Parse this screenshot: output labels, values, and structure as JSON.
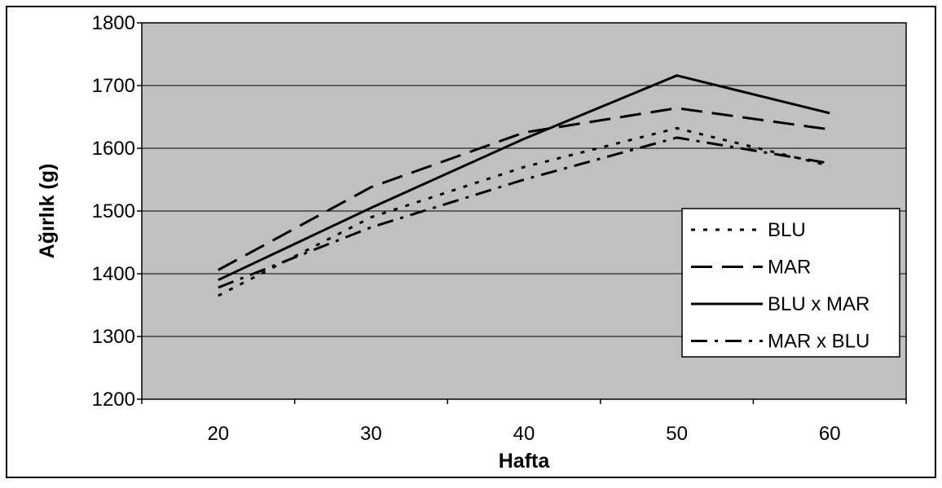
{
  "chart_data": {
    "type": "line",
    "title": "",
    "xlabel": "Hafta",
    "ylabel": "Ağırlık (g)",
    "ylim": [
      1200,
      1800
    ],
    "yticks": [
      1200,
      1300,
      1400,
      1500,
      1600,
      1700,
      1800
    ],
    "categories": [
      "20",
      "30",
      "40",
      "50",
      "60"
    ],
    "grid": "horizontal",
    "legend_position": "right",
    "plot_background": "#c0c0c0",
    "line_color": "#000000",
    "series": [
      {
        "name": "BLU",
        "style": "dotted",
        "values": [
          1365,
          1490,
          1570,
          1632,
          1572
        ]
      },
      {
        "name": "MAR",
        "style": "dashed",
        "values": [
          1406,
          1538,
          1625,
          1664,
          1630
        ]
      },
      {
        "name": "BLU x MAR",
        "style": "solid",
        "values": [
          1390,
          1505,
          1615,
          1716,
          1656
        ]
      },
      {
        "name": "MAR x BLU",
        "style": "dashdot",
        "values": [
          1378,
          1474,
          1550,
          1617,
          1576
        ]
      }
    ]
  }
}
